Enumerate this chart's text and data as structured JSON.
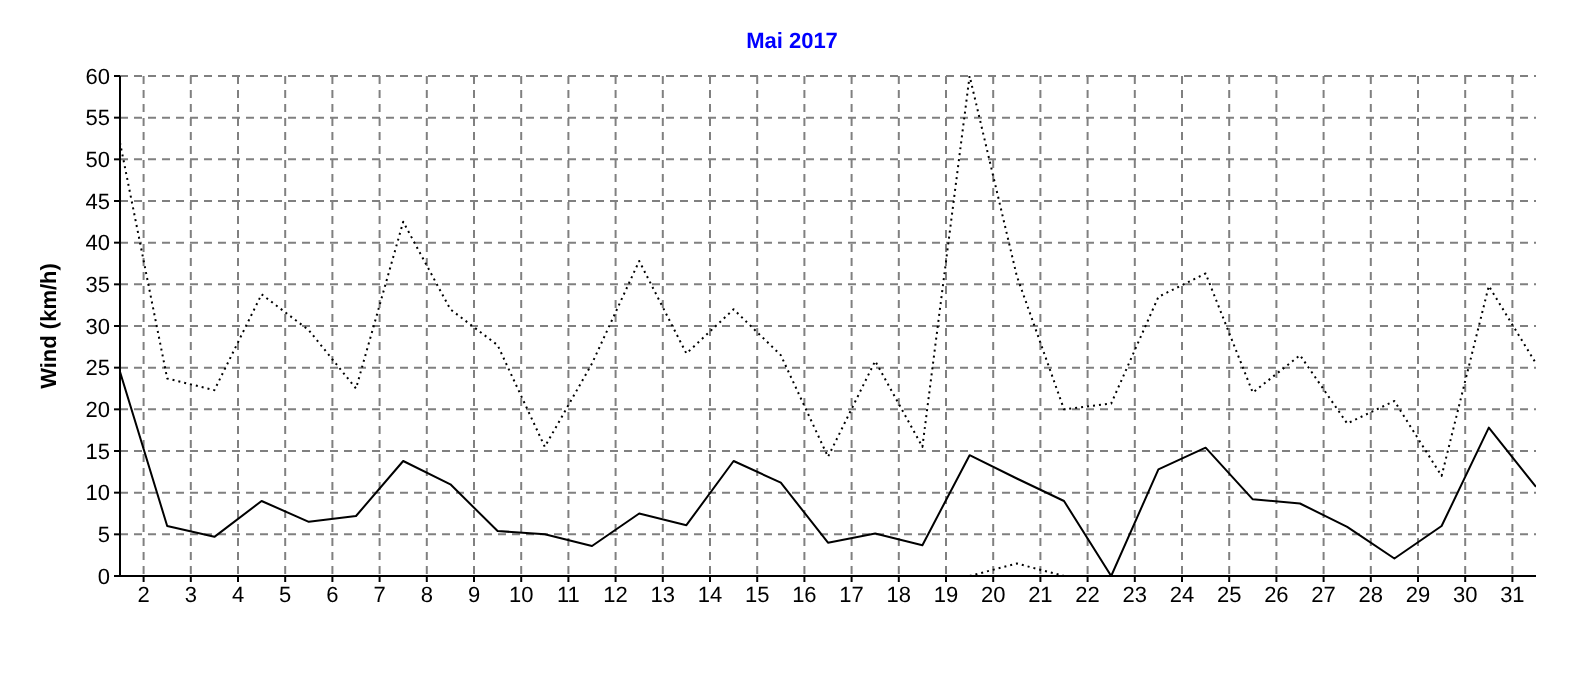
{
  "chart_data": {
    "type": "line",
    "title": "Mai 2017",
    "ylabel": "Wind  (km/h)",
    "x": [
      1.5,
      2.5,
      3.5,
      4.5,
      5.5,
      6.5,
      7.5,
      8.5,
      9.5,
      10.5,
      11.5,
      12.5,
      13.5,
      14.5,
      15.5,
      16.5,
      17.5,
      18.5,
      19.5,
      20.5,
      21.5,
      22.5,
      23.5,
      24.5,
      25.5,
      26.5,
      27.5,
      28.5,
      29.5,
      30.5,
      31.5
    ],
    "series": [
      {
        "color": "#000000",
        "line_style": "dotted",
        "values": [
          52,
          23.7,
          22.3,
          33.8,
          29.5,
          22.5,
          42.5,
          32,
          27.7,
          15.5,
          25.5,
          37.8,
          26.7,
          32,
          26.5,
          14.3,
          25.8,
          15.5,
          60,
          36,
          20,
          20.7,
          33.5,
          36.3,
          22,
          26.5,
          18.3,
          21,
          12,
          34.8,
          25.5
        ]
      },
      {
        "color": "#000000",
        "line_style": "solid",
        "values": [
          24.5,
          6,
          4.7,
          9,
          6.5,
          7.2,
          13.8,
          11,
          5.4,
          5,
          3.6,
          7.5,
          6.1,
          13.8,
          11.2,
          4,
          5.1,
          3.7,
          14.5,
          11.7,
          9,
          0,
          12.8,
          15.4,
          9.2,
          8.7,
          5.9,
          2.1,
          6,
          17.8,
          10.7
        ]
      },
      {
        "color": "#000000",
        "line_style": "dotted",
        "values": [
          null,
          null,
          null,
          null,
          null,
          null,
          null,
          null,
          null,
          null,
          null,
          null,
          null,
          null,
          null,
          null,
          null,
          null,
          0,
          1.5,
          0,
          null,
          null,
          null,
          null,
          null,
          null,
          null,
          null,
          null,
          null
        ]
      }
    ],
    "xlim": [
      1.5,
      31.5
    ],
    "xticks": [
      2,
      3,
      4,
      5,
      6,
      7,
      8,
      9,
      10,
      11,
      12,
      13,
      14,
      15,
      16,
      17,
      18,
      19,
      20,
      21,
      22,
      23,
      24,
      25,
      26,
      27,
      28,
      29,
      30,
      31
    ],
    "ylim": [
      0,
      60
    ],
    "yticks": [
      0,
      5,
      10,
      15,
      20,
      25,
      30,
      35,
      40,
      45,
      50,
      55,
      60
    ],
    "grid": true,
    "marker": "none"
  }
}
